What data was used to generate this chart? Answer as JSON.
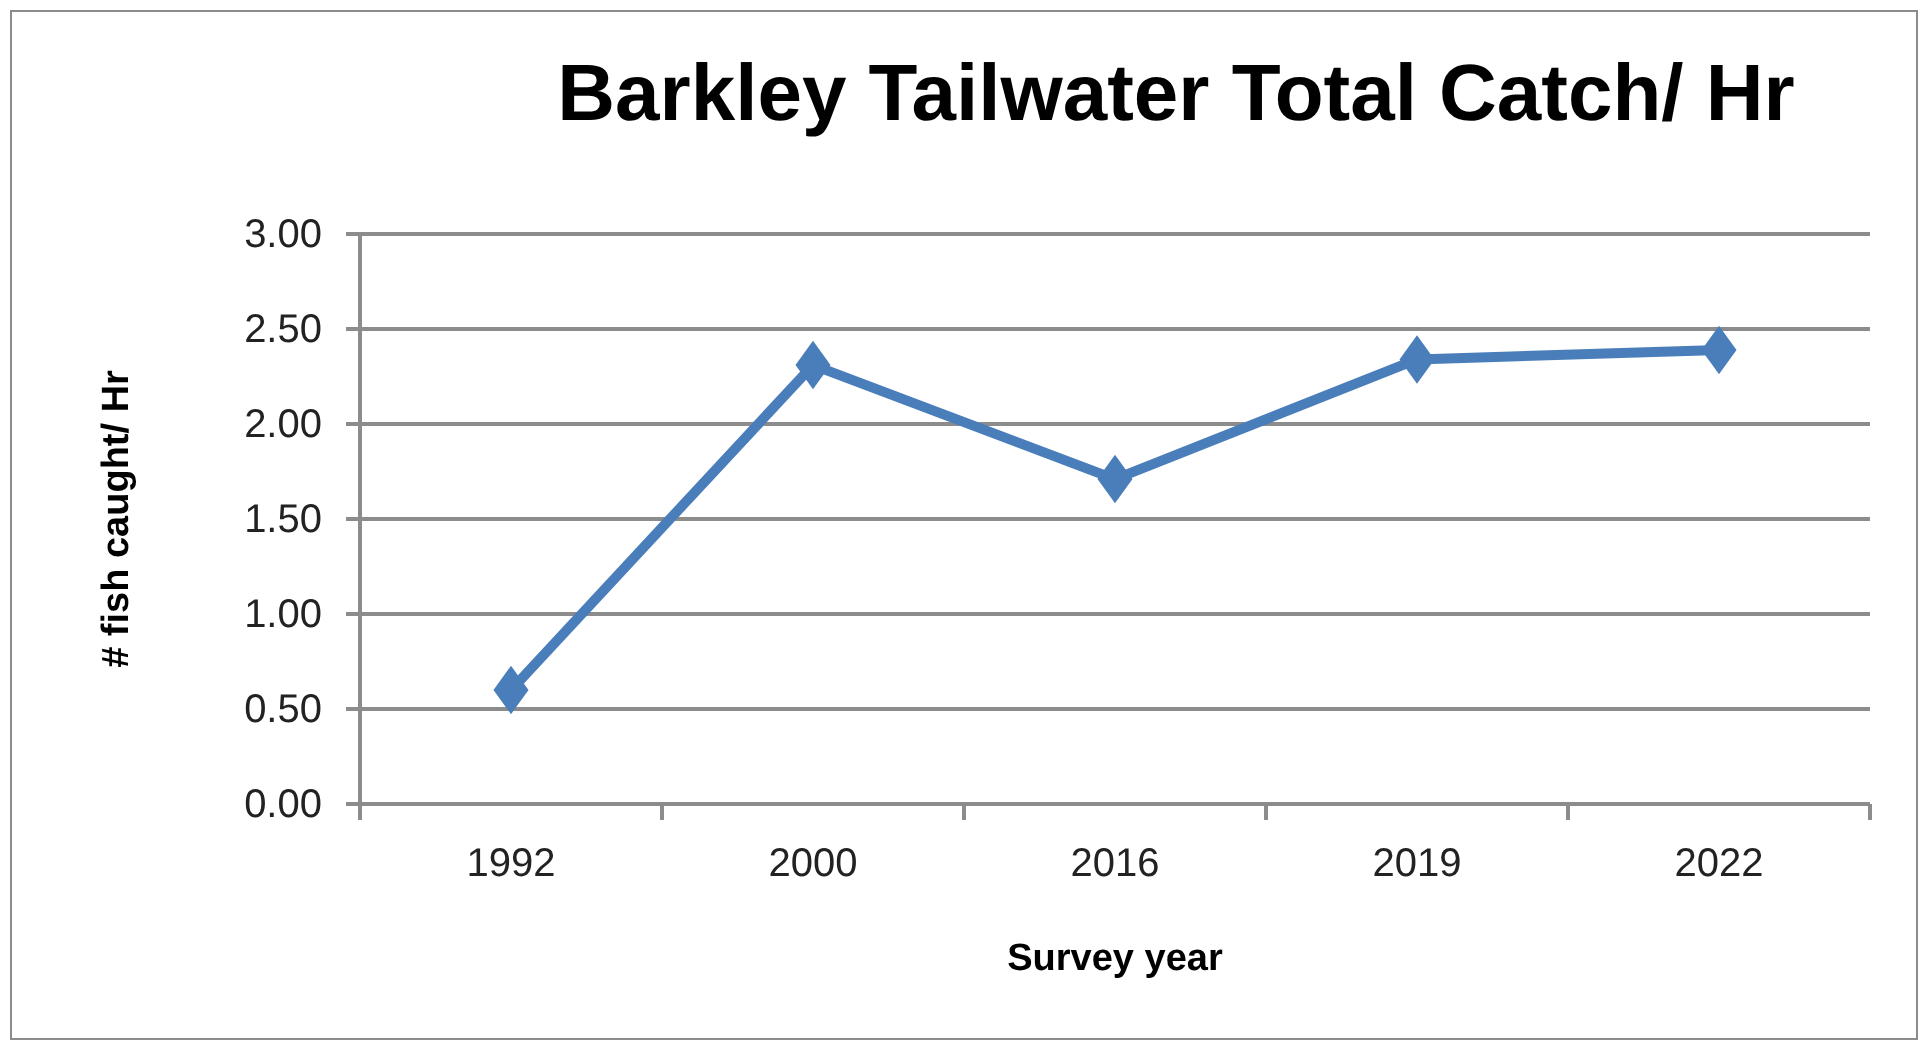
{
  "chart_data": {
    "type": "line",
    "title": "Barkley Tailwater Total Catch/ Hr",
    "xlabel": "Survey year",
    "ylabel": "# fish caught/ Hr",
    "categories": [
      "1992",
      "2000",
      "2016",
      "2019",
      "2022"
    ],
    "series": [
      {
        "color": "#4a7ebb",
        "values": [
          0.6,
          2.31,
          1.71,
          2.34,
          2.39
        ]
      }
    ],
    "ylim": [
      0,
      3
    ],
    "yticks": [
      {
        "value": 0,
        "label": "0.00"
      },
      {
        "value": 0.5,
        "label": "0.50"
      },
      {
        "value": 1,
        "label": "1.00"
      },
      {
        "value": 1.5,
        "label": "1.50"
      },
      {
        "value": 2,
        "label": "2.00"
      },
      {
        "value": 2.5,
        "label": "2.50"
      },
      {
        "value": 3,
        "label": "3.00"
      }
    ],
    "grid": "y",
    "marker": "diamond",
    "line_style": "solid"
  }
}
